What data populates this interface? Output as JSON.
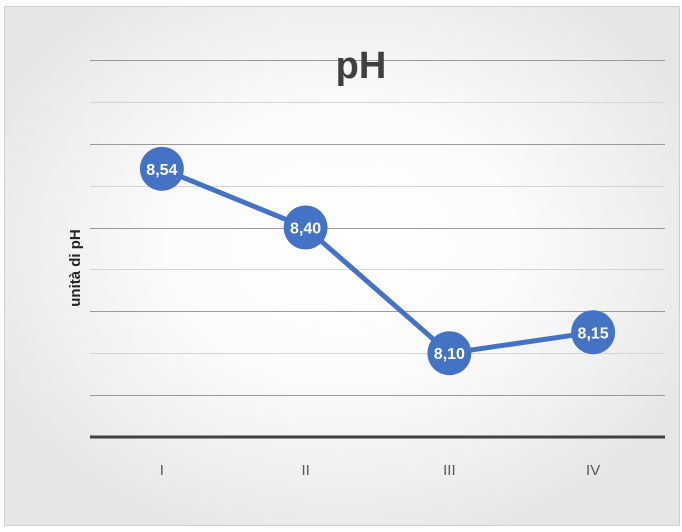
{
  "chart_data": {
    "type": "line",
    "title": "pH",
    "xlabel": "",
    "ylabel": "unità di pH",
    "categories": [
      "I",
      "II",
      "III",
      "IV"
    ],
    "series": [
      {
        "values": [
          8.54,
          8.4,
          8.1,
          8.15
        ],
        "data_labels": [
          "8,54",
          "8,40",
          "8,10",
          "8,15"
        ],
        "color": "#4472C4"
      }
    ],
    "ylim": [
      7.9,
      8.9
    ],
    "y_gridlines": [
      8.0,
      8.1,
      8.2,
      8.3,
      8.4,
      8.5,
      8.6,
      8.7,
      8.8
    ],
    "grid": true,
    "legend": "none",
    "y_tick_labels_visible": false
  }
}
